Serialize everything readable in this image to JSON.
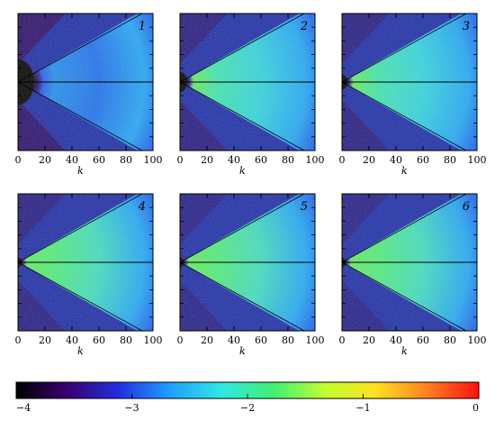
{
  "chart_data": {
    "type": "heatmap",
    "panels": [
      {
        "label": "1",
        "xlabel": "k",
        "x_ticks": [
          "0",
          "20",
          "40",
          "60",
          "80",
          "100"
        ],
        "xlim": [
          0,
          100
        ],
        "intensity": 0.15,
        "core_radius": 18
      },
      {
        "label": "2",
        "xlabel": "k",
        "x_ticks": [
          "0",
          "20",
          "40",
          "60",
          "80",
          "100"
        ],
        "xlim": [
          0,
          100
        ],
        "intensity": 0.55,
        "core_radius": 8
      },
      {
        "label": "3",
        "xlabel": "k",
        "x_ticks": [
          "0",
          "20",
          "40",
          "60",
          "80",
          "100"
        ],
        "xlim": [
          0,
          100
        ],
        "intensity": 0.6,
        "core_radius": 6
      },
      {
        "label": "4",
        "xlabel": "k",
        "x_ticks": [
          "0",
          "20",
          "40",
          "60",
          "80",
          "100"
        ],
        "xlim": [
          0,
          100
        ],
        "intensity": 0.65,
        "core_radius": 4
      },
      {
        "label": "5",
        "xlabel": "k",
        "x_ticks": [
          "0",
          "20",
          "40",
          "60",
          "80",
          "100"
        ],
        "xlim": [
          0,
          100
        ],
        "intensity": 0.72,
        "core_radius": 4
      },
      {
        "label": "6",
        "xlabel": "k",
        "x_ticks": [
          "0",
          "20",
          "40",
          "60",
          "80",
          "100"
        ],
        "xlim": [
          0,
          100
        ],
        "intensity": 0.72,
        "core_radius": 4
      }
    ],
    "colorbar": {
      "range": [
        -4,
        0
      ],
      "tick_labels": [
        "−4",
        "−3",
        "−2",
        "−1",
        "0"
      ],
      "colors": [
        "#000000",
        "#3a0070",
        "#2030e0",
        "#20a0ff",
        "#30e8e0",
        "#40f070",
        "#c0ff30",
        "#ffe020",
        "#ff8020",
        "#ff1010"
      ]
    },
    "grid": false
  }
}
